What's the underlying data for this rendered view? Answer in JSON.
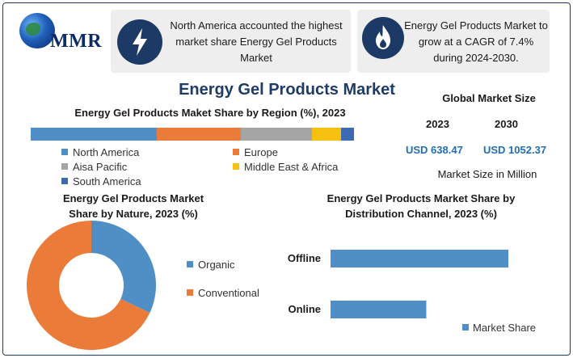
{
  "logo": {
    "text": "MMR"
  },
  "info_cards": [
    {
      "icon": "lightning-icon",
      "text": "North America accounted the highest market share Energy Gel Products Market"
    },
    {
      "icon": "flame-icon",
      "text": "Energy Gel Products Market to grow at a CAGR of 7.4% during 2024-2030."
    }
  ],
  "main_title": "Energy Gel Products Market",
  "global_market": {
    "title": "Global Market Size",
    "year_a": "2023",
    "year_b": "2030",
    "value_a": "USD 638.47",
    "value_b": "USD 1052.37",
    "note": "Market Size in Million"
  },
  "colors": {
    "blue": "#4f8fc6",
    "orange": "#ea7b39",
    "gray": "#a5a5a5",
    "yellow": "#f7c00f",
    "dark_blue": "#3d6bb3",
    "frame": "#1f3b68"
  },
  "chart_data": [
    {
      "type": "bar",
      "orientation": "horizontal-stacked-100",
      "title": "Energy Gel Products Maket Share by Region (%), 2023",
      "categories": [
        "North America",
        "Europe",
        "Aisa Pacific",
        "Middle East & Africa",
        "South America"
      ],
      "values": [
        39,
        26,
        22,
        9,
        4
      ],
      "legend": "bottom"
    },
    {
      "type": "pie",
      "subtype": "donut",
      "title": "Energy Gel Products Market Share by Nature, 2023 (%)",
      "categories": [
        "Organic",
        "Conventional"
      ],
      "values": [
        32,
        68
      ],
      "legend": "right"
    },
    {
      "type": "bar",
      "orientation": "horizontal",
      "title": "Energy Gel Products Market Share by Distribution Channel, 2023 (%)",
      "categories": [
        "Offline",
        "Online"
      ],
      "series": [
        {
          "name": "Market Share",
          "values": [
            65,
            35
          ]
        }
      ],
      "legend": "bottom-right"
    }
  ]
}
